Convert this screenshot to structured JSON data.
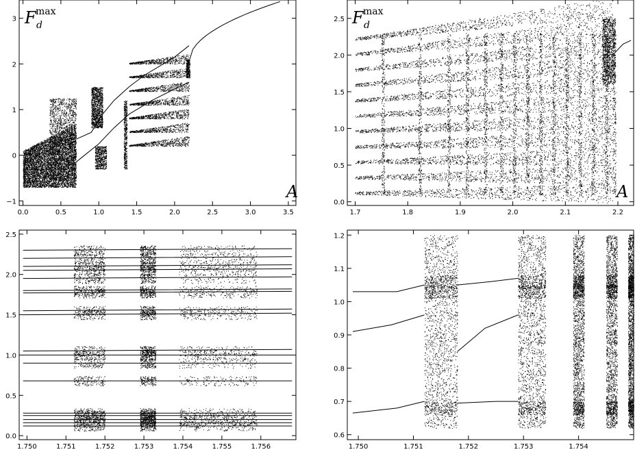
{
  "chart_data": [
    {
      "type": "scatter",
      "panel": "top-left",
      "ylabel": {
        "base": "F",
        "sub": "d",
        "sup": "max"
      },
      "xlabel": "A",
      "xlim": [
        -0.05,
        3.6
      ],
      "ylim": [
        -1.1,
        3.4
      ],
      "xticks": [
        "0.0",
        "0.5",
        "1.0",
        "1.5",
        "2.0",
        "2.5",
        "3.0",
        "3.5"
      ],
      "xtick_values": [
        0,
        0.5,
        1,
        1.5,
        2,
        2.5,
        3,
        3.5
      ],
      "yticks": [
        "−1",
        "0",
        "1",
        "2",
        "3"
      ],
      "ytick_values": [
        -1,
        0,
        1,
        2,
        3
      ],
      "description_values": {
        "chaotic_band_range": [
          0.0,
          0.7
        ],
        "chaos_end": 2.19,
        "smooth_branch": [
          [
            2.2,
            2.05
          ],
          [
            2.5,
            2.5
          ],
          [
            3.0,
            3.0
          ],
          [
            3.35,
            3.4
          ]
        ]
      }
    },
    {
      "type": "scatter",
      "panel": "top-right",
      "ylabel": {
        "base": "F",
        "sub": "d",
        "sup": "max"
      },
      "xlabel": "A",
      "xlim": [
        1.685,
        2.23
      ],
      "ylim": [
        -0.05,
        2.75
      ],
      "xticks": [
        "1.7",
        "1.8",
        "1.9",
        "2.0",
        "2.1",
        "2.2"
      ],
      "xtick_values": [
        1.7,
        1.8,
        1.9,
        2.0,
        2.1,
        2.2
      ],
      "yticks": [
        "0.0",
        "0.5",
        "1.0",
        "1.5",
        "2.0",
        "2.5"
      ],
      "ytick_values": [
        0,
        0.5,
        1.0,
        1.5,
        2.0,
        2.5
      ],
      "description_values": {
        "band_edges_x": [
          1.75,
          1.82,
          1.875,
          1.91,
          1.945,
          1.975,
          2.0,
          2.025,
          2.05,
          2.075,
          2.1,
          2.125,
          2.15,
          2.175,
          2.19
        ],
        "top_envelope": [
          [
            1.7,
            2.22
          ],
          [
            2.19,
            2.65
          ]
        ]
      }
    },
    {
      "type": "scatter",
      "panel": "bottom-left",
      "xlim": [
        1.7498,
        1.7569
      ],
      "ylim": [
        -0.05,
        2.55
      ],
      "xticks": [
        "1.750",
        "1.751",
        "1.752",
        "1.753",
        "1.754",
        "1.755",
        "1.756"
      ],
      "xtick_values": [
        1.75,
        1.751,
        1.752,
        1.753,
        1.754,
        1.755,
        1.756
      ],
      "yticks": [
        "0.0",
        "0.5",
        "1.0",
        "1.5",
        "2.0",
        "2.5"
      ],
      "ytick_values": [
        0,
        0.5,
        1.0,
        1.5,
        2.0,
        2.5
      ],
      "description_values": {
        "chaotic_windows_x": [
          [
            1.7512,
            1.752
          ],
          [
            1.7529,
            1.7533
          ],
          [
            1.7539,
            1.7559
          ]
        ],
        "level_groups_y": [
          [
            0.12,
            0.28
          ],
          [
            0.68,
            0.68
          ],
          [
            0.9,
            1.15
          ],
          [
            1.48,
            1.58
          ],
          [
            1.75,
            1.82
          ],
          [
            1.95,
            2.3
          ]
        ]
      }
    },
    {
      "type": "scatter",
      "panel": "bottom-right",
      "xlim": [
        1.7498,
        1.755
      ],
      "ylim": [
        0.585,
        1.215
      ],
      "xticks": [
        "1.750",
        "1.751",
        "1.752",
        "1.753",
        "1.754"
      ],
      "xtick_values": [
        1.75,
        1.751,
        1.752,
        1.753,
        1.754
      ],
      "yticks": [
        "0.6",
        "0.7",
        "0.8",
        "0.9",
        "1.0",
        "1.1",
        "1.2"
      ],
      "ytick_values": [
        0.6,
        0.7,
        0.8,
        0.9,
        1.0,
        1.1,
        1.2
      ],
      "description_values": {
        "chaotic_windows_x": [
          [
            1.7512,
            1.7518
          ],
          [
            1.7529,
            1.7534
          ],
          [
            1.7539,
            1.7541
          ],
          [
            1.7545,
            1.7547
          ],
          [
            1.7549,
            1.755
          ]
        ],
        "periodic_start_levels": [
          0.665,
          0.91,
          1.03
        ]
      }
    }
  ]
}
